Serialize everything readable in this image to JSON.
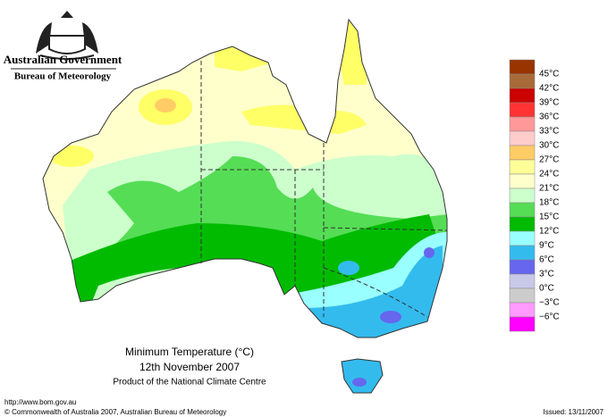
{
  "header": {
    "government": "Australian Government",
    "bureau": "Bureau of Meteorology"
  },
  "map": {
    "title": "Minimum Temperature (°C)",
    "date": "12th November 2007",
    "credit": "Product of the National Climate Centre"
  },
  "legend": {
    "colors": [
      "#993300",
      "#a86a38",
      "#cc0000",
      "#ff3333",
      "#ff9999",
      "#ffcccc",
      "#ffcc66",
      "#ffff99",
      "#ffffcc",
      "#ccffcc",
      "#55dd55",
      "#00bb00",
      "#99ffff",
      "#33bbee",
      "#6666ee",
      "#c8c8e8",
      "#cccccc",
      "#ff99ff",
      "#ff00ff"
    ],
    "labels": [
      "45°C",
      "42°C",
      "39°C",
      "36°C",
      "33°C",
      "30°C",
      "27°C",
      "24°C",
      "21°C",
      "18°C",
      "15°C",
      "12°C",
      "9°C",
      "6°C",
      "3°C",
      "0°C",
      "−3°C",
      "−6°C"
    ]
  },
  "footer": {
    "url": "http://www.bom.gov.au",
    "copyright": "© Commonwealth of Australia 2007, Australian Bureau of Meteorology",
    "issued": "Issued: 13/11/2007"
  }
}
